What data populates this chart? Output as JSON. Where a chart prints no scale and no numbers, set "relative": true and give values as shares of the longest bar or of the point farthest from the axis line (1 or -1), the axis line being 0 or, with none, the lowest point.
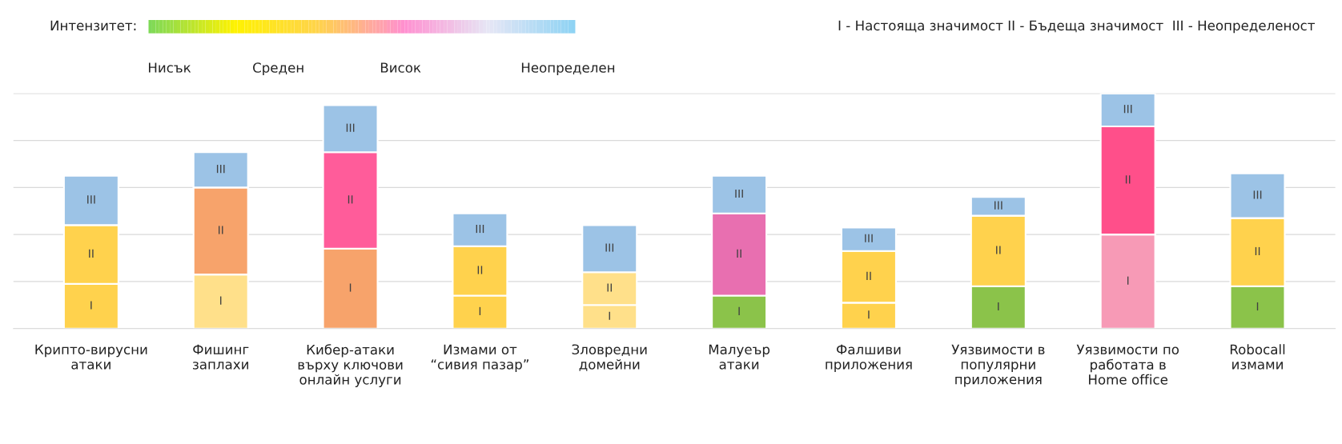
{
  "chart_data": {
    "type": "bar",
    "stacked": true,
    "relative": true,
    "grid": "y",
    "legend": false,
    "categories": [
      "Крипто-вирусни\nатаки",
      "Фишинг\nзаплахи",
      "Кибер-атаки\nвърху ключови\nонлайн услуги",
      "Измами от\n“сивия пазар”",
      "Зловредни\nдомейни",
      "Малуеър\nатаки",
      "Фалшиви\nприложения",
      "Уязвимости в\nпопулярни\nприложения",
      "Уязвимости по\nработата в\nHome office",
      "Robocall\nизмами"
    ],
    "series": [
      {
        "name": "I",
        "colors": [
          "#ffd24d",
          "#ffe08a",
          "#f7a36b",
          "#ffd24d",
          "#ffe08a",
          "#8bc34a",
          "#ffd24d",
          "#8bc34a",
          "#f79ab6",
          "#8bc34a"
        ],
        "values": [
          0.19,
          0.23,
          0.34,
          0.14,
          0.1,
          0.14,
          0.11,
          0.18,
          0.4,
          0.18
        ]
      },
      {
        "name": "II",
        "colors": [
          "#ffd24d",
          "#f7a36b",
          "#ff5c9a",
          "#ffd24d",
          "#ffe08a",
          "#e86fb0",
          "#ffd24d",
          "#ffd24d",
          "#ff4f8a",
          "#ffd24d"
        ],
        "values": [
          0.25,
          0.37,
          0.41,
          0.21,
          0.14,
          0.35,
          0.22,
          0.3,
          0.46,
          0.29
        ]
      },
      {
        "name": "III",
        "color": "#9cc3e6",
        "values": [
          0.21,
          0.15,
          0.2,
          0.14,
          0.2,
          0.16,
          0.1,
          0.08,
          0.14,
          0.19
        ]
      }
    ],
    "annotations": [
      "Интензитет:",
      "Нисък",
      "Среден",
      "Висок",
      "Неопределен",
      "I - Настояща значимост II - Бъдеща значимост  III - Неопределеност"
    ]
  }
}
